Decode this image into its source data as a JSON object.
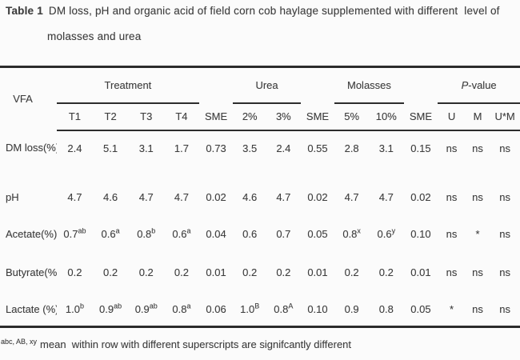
{
  "caption": {
    "prefix": "Table 1",
    "line1": "DM loss, pH and organic acid of field corn cob haylage supplemented with different  level of",
    "line2": "molasses and urea"
  },
  "table": {
    "corner_label": "VFA",
    "groups": [
      {
        "label": "Treatment",
        "span": 4,
        "italic_first": false
      },
      {
        "label": "",
        "span": 1,
        "italic_first": false
      },
      {
        "label": "Urea",
        "span": 2,
        "italic_first": false
      },
      {
        "label": "",
        "span": 1,
        "italic_first": false
      },
      {
        "label": "Molasses",
        "span": 2,
        "italic_first": false
      },
      {
        "label": "",
        "span": 1,
        "italic_first": false
      },
      {
        "label": "P-value",
        "span": 3,
        "italic_first": true
      }
    ],
    "subheaders": [
      "T1",
      "T2",
      "T3",
      "T4",
      "SME",
      "2%",
      "3%",
      "SME",
      "5%",
      "10%",
      "SME",
      "U",
      "M",
      "U*M"
    ],
    "rows": [
      {
        "label": "DM loss(%)",
        "values": [
          "2.4",
          "5.1",
          "3.1",
          "1.7",
          "0.73",
          "3.5",
          "2.4",
          "0.55",
          "2.8",
          "3.1",
          "0.15",
          "ns",
          "ns",
          "ns"
        ]
      },
      {
        "label": "pH",
        "values": [
          "4.7",
          "4.6",
          "4.7",
          "4.7",
          "0.02",
          "4.6",
          "4.7",
          "0.02",
          "4.7",
          "4.7",
          "0.02",
          "ns",
          "ns",
          "ns"
        ]
      },
      {
        "label": "Acetate(%)",
        "values": [
          "0.7^ab",
          "0.6^a",
          "0.8^b",
          "0.6^a",
          "0.04",
          "0.6",
          "0.7",
          "0.05",
          "0.8^x",
          "0.6^y",
          "0.10",
          "ns",
          "*",
          "ns"
        ]
      },
      {
        "label": "Butyrate(%)",
        "values": [
          "0.2",
          "0.2",
          "0.2",
          "0.2",
          "0.01",
          "0.2",
          "0.2",
          "0.01",
          "0.2",
          "0.2",
          "0.01",
          "ns",
          "ns",
          "ns"
        ]
      },
      {
        "label": "Lactate (%)",
        "values": [
          "1.0^b",
          "0.9^ab",
          "0.9^ab",
          "0.8^a",
          "0.06",
          "1.0^B",
          "0.8^A",
          "0.10",
          "0.9",
          "0.8",
          "0.05",
          "*",
          "ns",
          "ns"
        ]
      }
    ]
  },
  "footnote": {
    "superscript": "abc, AB, xy",
    "text": "mean  within row with different superscripts are signifcantly different"
  },
  "colors": {
    "text": "#3f3f3f",
    "rule": "#2c2c2c",
    "background": "#fbfbfb"
  }
}
